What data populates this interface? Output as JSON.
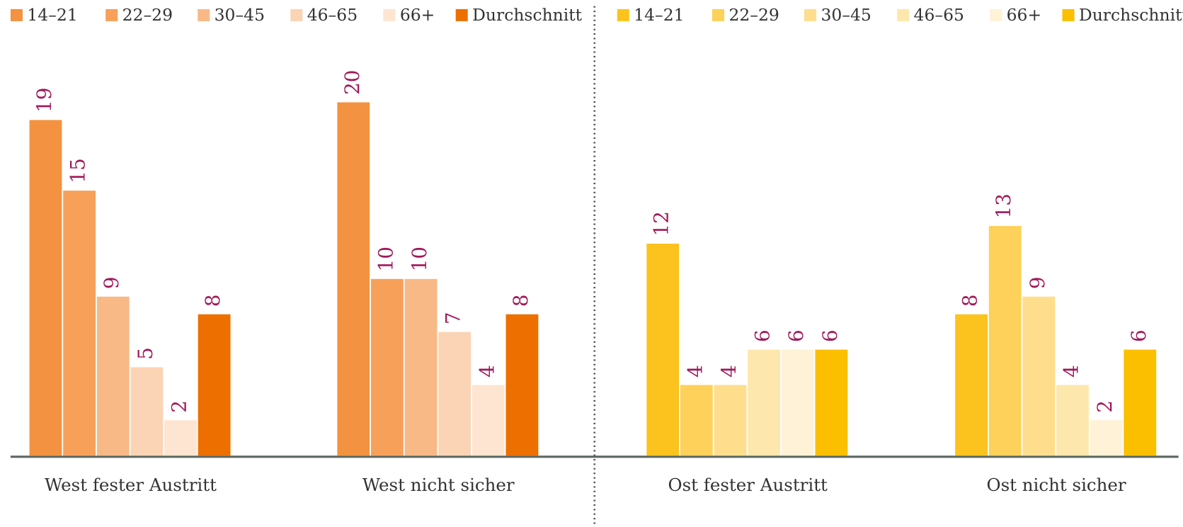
{
  "chart_data": [
    {
      "type": "bar",
      "categories": [
        "West fester Austritt",
        "West nicht sicher"
      ],
      "series": [
        {
          "name": "14–21",
          "color": "#f39240",
          "values": [
            19,
            20
          ]
        },
        {
          "name": "22–29",
          "color": "#f6a05a",
          "values": [
            15,
            10
          ]
        },
        {
          "name": "30–45",
          "color": "#f8b987",
          "values": [
            9,
            10
          ]
        },
        {
          "name": "46–65",
          "color": "#fbd4b5",
          "values": [
            5,
            7
          ]
        },
        {
          "name": "66+",
          "color": "#fde5d1",
          "values": [
            2,
            4
          ]
        },
        {
          "name": "Durchschnitt",
          "color": "#ed6f00",
          "values": [
            8,
            8
          ]
        }
      ]
    },
    {
      "type": "bar",
      "categories": [
        "Ost fester Austritt",
        "Ost nicht sicher"
      ],
      "series": [
        {
          "name": "14–21",
          "color": "#fcc31e",
          "values": [
            12,
            8
          ]
        },
        {
          "name": "22–29",
          "color": "#fdd15a",
          "values": [
            4,
            13
          ]
        },
        {
          "name": "30–45",
          "color": "#fede8d",
          "values": [
            4,
            9
          ]
        },
        {
          "name": "46–65",
          "color": "#fee7ac",
          "values": [
            6,
            4
          ]
        },
        {
          "name": "66+",
          "color": "#fff2d6",
          "values": [
            6,
            2
          ]
        },
        {
          "name": "Durchschnitt",
          "color": "#fbbf00",
          "values": [
            6,
            6
          ]
        }
      ]
    }
  ]
}
